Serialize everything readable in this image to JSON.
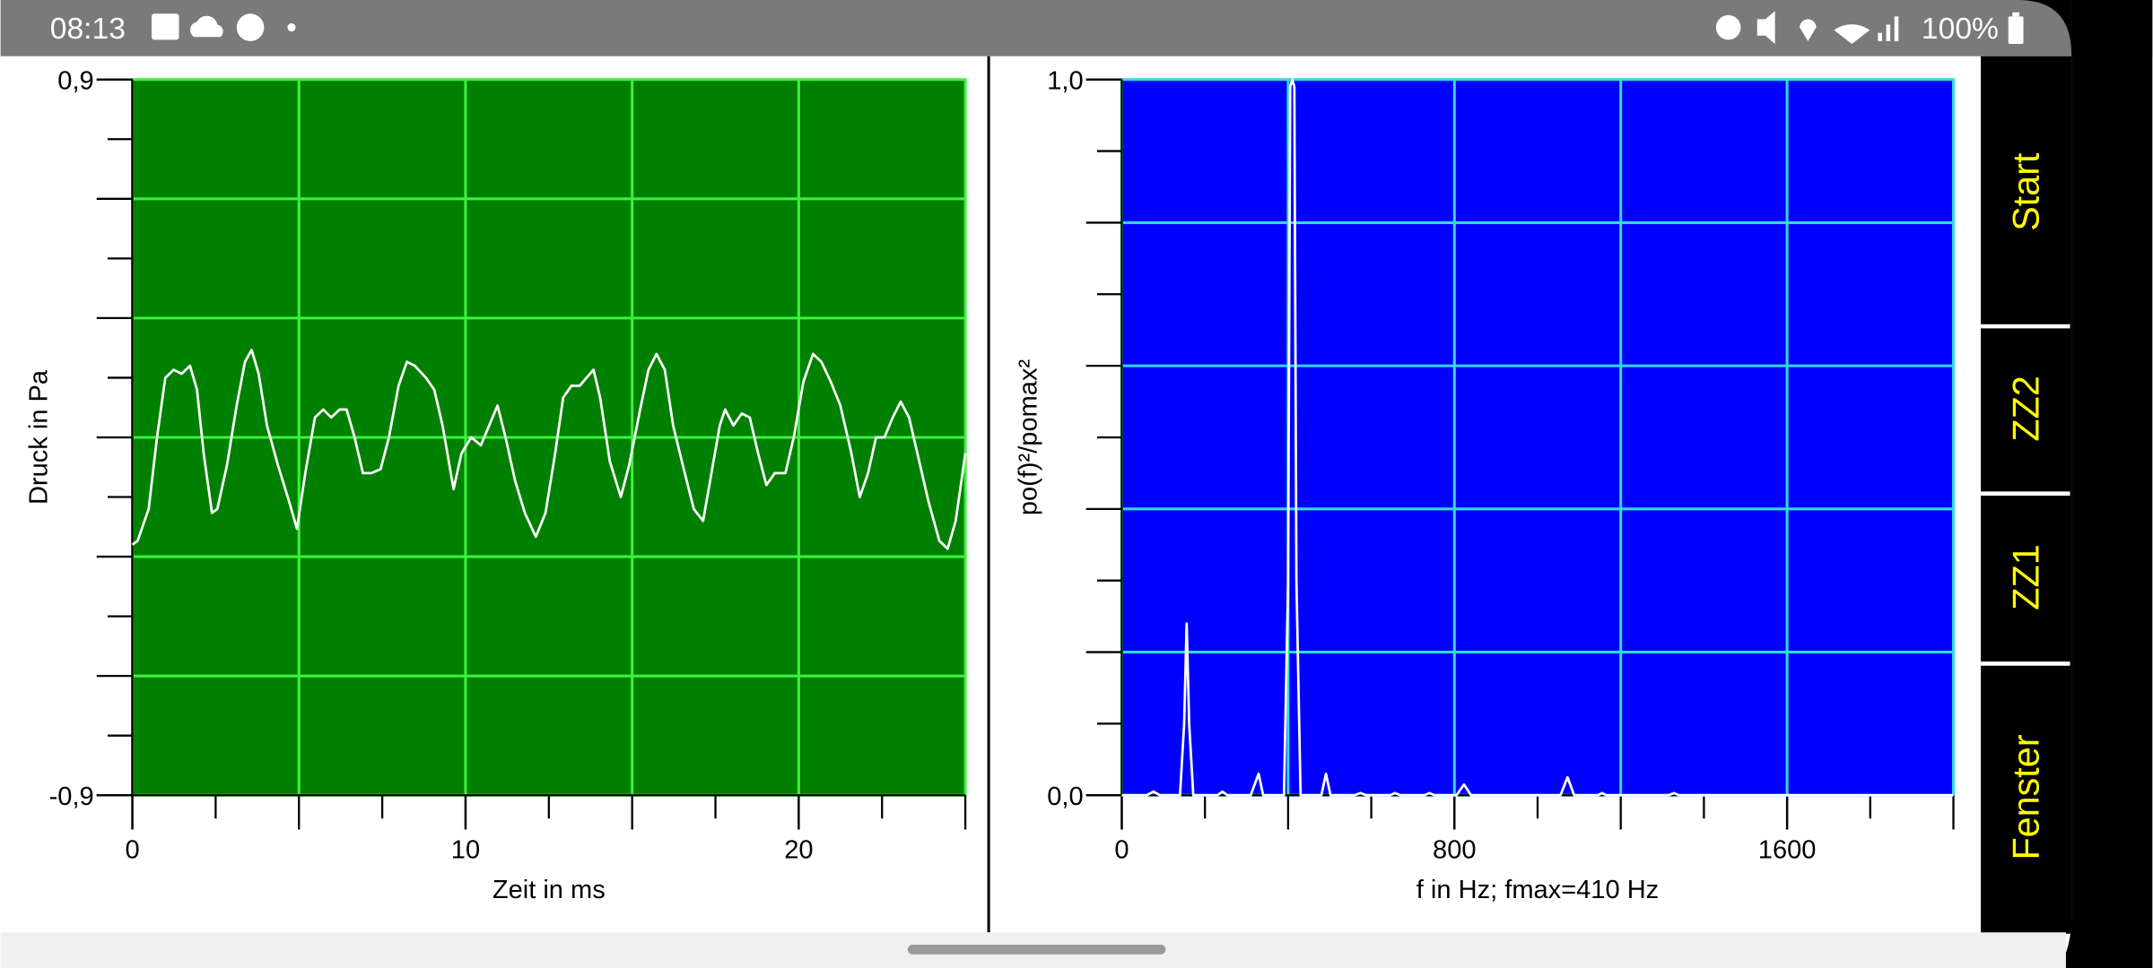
{
  "status_bar": {
    "time": "08:13",
    "battery": "100%"
  },
  "buttons": [
    "Start",
    "ZZ2",
    "ZZ1",
    "Fenster"
  ],
  "chart_data": [
    {
      "type": "line",
      "xlabel": "Zeit in ms",
      "ylabel": "Druck in Pa",
      "background": "#008000",
      "grid_color": "#3ef03e",
      "xlim": [
        0,
        25
      ],
      "ylim": [
        -0.9,
        0.9
      ],
      "xticks": [
        0,
        10,
        20
      ],
      "yticks": [
        {
          "value": -0.9,
          "label": "-0,9"
        },
        {
          "value": 0.9,
          "label": "0,9"
        }
      ],
      "grid_step": {
        "x": 5,
        "y": 0.3
      },
      "minor_tick_step": {
        "x": 2.5,
        "y": 0.15
      },
      "x": [
        0,
        0.16,
        0.49,
        0.74,
        0.99,
        1.24,
        1.48,
        1.73,
        1.94,
        2.14,
        2.39,
        2.55,
        2.84,
        3.13,
        3.38,
        3.58,
        3.79,
        4.04,
        4.37,
        4.7,
        4.94,
        5.19,
        5.48,
        5.73,
        5.97,
        6.22,
        6.43,
        6.67,
        6.92,
        7.17,
        7.45,
        7.7,
        7.99,
        8.24,
        8.48,
        8.81,
        9.06,
        9.31,
        9.64,
        9.88,
        10.17,
        10.46,
        10.71,
        10.96,
        11.2,
        11.49,
        11.78,
        12.11,
        12.4,
        12.69,
        12.93,
        13.18,
        13.43,
        13.63,
        13.84,
        14.04,
        14.33,
        14.66,
        14.91,
        15.24,
        15.49,
        15.73,
        15.98,
        16.23,
        16.52,
        16.85,
        17.13,
        17.38,
        17.63,
        17.79,
        18.04,
        18.29,
        18.53,
        18.78,
        19.03,
        19.28,
        19.6,
        19.85,
        20.14,
        20.43,
        20.68,
        20.96,
        21.25,
        21.58,
        21.83,
        22.08,
        22.32,
        22.57,
        22.82,
        23.06,
        23.31,
        23.56,
        23.89,
        24.22,
        24.47,
        24.71,
        25
      ],
      "series": [
        {
          "color": "#ffffff",
          "values": [
            -0.27,
            -0.26,
            -0.18,
            0,
            0.15,
            0.17,
            0.16,
            0.18,
            0.12,
            -0.04,
            -0.19,
            -0.18,
            -0.07,
            0.08,
            0.19,
            0.22,
            0.16,
            0.03,
            -0.07,
            -0.16,
            -0.23,
            -0.09,
            0.05,
            0.07,
            0.05,
            0.07,
            0.07,
            0,
            -0.09,
            -0.09,
            -0.08,
            0,
            0.13,
            0.19,
            0.18,
            0.15,
            0.12,
            0.03,
            -0.13,
            -0.04,
            0,
            -0.02,
            0.03,
            0.08,
            0,
            -0.11,
            -0.19,
            -0.25,
            -0.19,
            -0.04,
            0.1,
            0.13,
            0.13,
            0.15,
            0.17,
            0.1,
            -0.06,
            -0.15,
            -0.07,
            0.07,
            0.17,
            0.21,
            0.17,
            0.03,
            -0.07,
            -0.18,
            -0.21,
            -0.09,
            0.03,
            0.07,
            0.03,
            0.06,
            0.05,
            -0.04,
            -0.12,
            -0.09,
            -0.09,
            0,
            0.14,
            0.21,
            0.19,
            0.14,
            0.08,
            -0.04,
            -0.15,
            -0.09,
            0,
            0,
            0.05,
            0.09,
            0.05,
            -0.04,
            -0.16,
            -0.26,
            -0.28,
            -0.21,
            -0.04
          ]
        }
      ]
    },
    {
      "type": "line",
      "xlabel": "f in Hz; fmax=410 Hz",
      "ylabel": "po(f)²/pomax²",
      "background": "#0000ff",
      "grid_color": "#35d8e0",
      "xlim": [
        0,
        2000
      ],
      "ylim": [
        0,
        1
      ],
      "xticks": [
        0,
        800,
        1600
      ],
      "yticks": [
        {
          "value": 0,
          "label": "0,0"
        },
        {
          "value": 1,
          "label": "1,0"
        }
      ],
      "grid_step": {
        "x": 400,
        "y": 0.2
      },
      "minor_tick_step": {
        "x": 200,
        "y": 0.1
      },
      "x": [
        0,
        60,
        76,
        92,
        140,
        150,
        156,
        162,
        172,
        230,
        242,
        254,
        310,
        329,
        340,
        390,
        400,
        405,
        410,
        415,
        420,
        430,
        480,
        491,
        502,
        560,
        574,
        588,
        645,
        657,
        670,
        728,
        740,
        752,
        805,
        823,
        840,
        1055,
        1072,
        1088,
        1145,
        1155,
        1165,
        1315,
        1328,
        1340,
        2000
      ],
      "series": [
        {
          "color": "#ffffff",
          "values": [
            0,
            0,
            0.005,
            0,
            0,
            0.1,
            0.24,
            0.1,
            0,
            0,
            0.005,
            0,
            0,
            0.03,
            0,
            0,
            0.3,
            0.99,
            1,
            0.99,
            0.3,
            0,
            0,
            0.03,
            0,
            0,
            0.003,
            0,
            0,
            0.003,
            0,
            0,
            0.003,
            0,
            0,
            0.015,
            0,
            0,
            0.025,
            0,
            0,
            0.003,
            0,
            0,
            0.003,
            0,
            0
          ]
        }
      ]
    }
  ]
}
